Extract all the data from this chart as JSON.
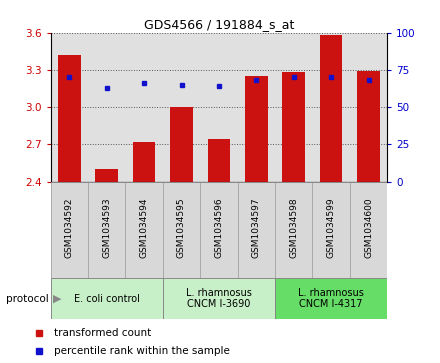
{
  "title": "GDS4566 / 191884_s_at",
  "samples": [
    "GSM1034592",
    "GSM1034593",
    "GSM1034594",
    "GSM1034595",
    "GSM1034596",
    "GSM1034597",
    "GSM1034598",
    "GSM1034599",
    "GSM1034600"
  ],
  "transformed_counts": [
    3.42,
    2.5,
    2.72,
    3.0,
    2.74,
    3.25,
    3.28,
    3.58,
    3.29
  ],
  "percentile_ranks": [
    70,
    63,
    66,
    65,
    64,
    68,
    70,
    70,
    68
  ],
  "ylim_left": [
    2.4,
    3.6
  ],
  "yticks_left": [
    2.4,
    2.7,
    3.0,
    3.3,
    3.6
  ],
  "ylim_right": [
    0,
    100
  ],
  "yticks_right": [
    0,
    25,
    50,
    75,
    100
  ],
  "bar_color": "#cc1111",
  "dot_color": "#1111cc",
  "group_labels": [
    "E. coli control",
    "L. rhamnosus\nCNCM I-3690",
    "L. rhamnosus\nCNCM I-4317"
  ],
  "group_starts": [
    0,
    3,
    6
  ],
  "group_ends": [
    3,
    6,
    9
  ],
  "group_colors": [
    "#c8f0c8",
    "#c8f0c8",
    "#66dd66"
  ],
  "legend_bar_label": "transformed count",
  "legend_dot_label": "percentile rank within the sample",
  "protocol_label": "protocol",
  "tick_label_color_left": "#cc0000",
  "tick_label_color_right": "#0000cc",
  "grid_color": "#555555",
  "bg_color": "#e0e0e0",
  "sample_box_color": "#d8d8d8",
  "sample_box_edge": "#aaaaaa"
}
